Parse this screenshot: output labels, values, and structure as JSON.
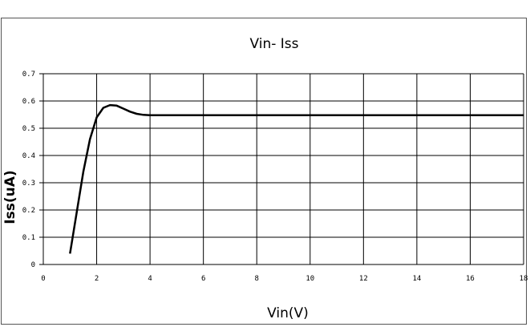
{
  "chart_data": {
    "type": "line",
    "title": "Vin- Iss",
    "xlabel": "Vin(V)",
    "ylabel": "Iss(uA)",
    "xlim": [
      0,
      18
    ],
    "ylim": [
      0,
      0.7
    ],
    "x_ticks": [
      "0",
      "2",
      "4",
      "6",
      "8",
      "10",
      "12",
      "14",
      "16",
      "18"
    ],
    "y_ticks": [
      "0",
      "0.1",
      "0.2",
      "0.3",
      "0.4",
      "0.5",
      "0.6",
      "0.7"
    ],
    "grid": true,
    "series": [
      {
        "color": "#000000",
        "x": [
          1.0,
          1.25,
          1.5,
          1.75,
          2.0,
          2.25,
          2.5,
          2.75,
          3.0,
          3.25,
          3.5,
          3.75,
          4.0,
          5.0,
          6.0,
          8.0,
          10.0,
          12.0,
          14.0,
          16.0,
          18.0
        ],
        "y": [
          0.04,
          0.19,
          0.34,
          0.46,
          0.54,
          0.575,
          0.585,
          0.583,
          0.572,
          0.561,
          0.553,
          0.549,
          0.548,
          0.548,
          0.548,
          0.548,
          0.548,
          0.548,
          0.548,
          0.548,
          0.548
        ]
      }
    ]
  }
}
